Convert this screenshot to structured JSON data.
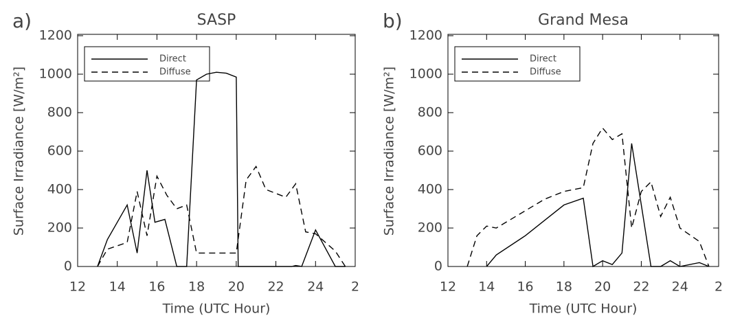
{
  "chart_data": [
    {
      "type": "line",
      "panel": "a)",
      "title": "SASP",
      "xlabel": "Time (UTC Hour)",
      "ylabel": "Surface Irradiance [W/m²]",
      "xlim": [
        12,
        26
      ],
      "xticks": [
        12,
        14,
        16,
        18,
        20,
        22,
        24,
        {
          "value": 26,
          "label": "2"
        }
      ],
      "ylim": [
        0,
        1200
      ],
      "yticks": [
        0,
        200,
        400,
        600,
        800,
        1000,
        1200
      ],
      "legend": "upper left",
      "series": [
        {
          "name": "Direct",
          "color": "#000000",
          "dash": false,
          "x": [
            13.0,
            13.5,
            14.5,
            15.0,
            15.5,
            15.9,
            16.4,
            17.0,
            17.5,
            18.0,
            18.5,
            19.0,
            19.5,
            20.0,
            20.1,
            22.8,
            23.0,
            23.3,
            24.0,
            25.0,
            25.5
          ],
          "values": [
            0,
            140,
            320,
            70,
            500,
            230,
            245,
            0,
            0,
            970,
            1000,
            1010,
            1005,
            985,
            0,
            0,
            5,
            0,
            190,
            0,
            0
          ]
        },
        {
          "name": "Diffuse",
          "color": "#000000",
          "dash": true,
          "x": [
            13.0,
            13.5,
            14.5,
            15.0,
            15.5,
            16.0,
            16.5,
            17.0,
            17.5,
            18.0,
            20.0,
            20.5,
            21.0,
            21.5,
            22.5,
            23.0,
            23.5,
            24.0,
            25.0,
            25.5
          ],
          "values": [
            0,
            90,
            125,
            390,
            160,
            470,
            370,
            300,
            320,
            70,
            70,
            450,
            520,
            400,
            360,
            430,
            180,
            170,
            80,
            0
          ]
        }
      ]
    },
    {
      "type": "line",
      "panel": "b)",
      "title": "Grand Mesa",
      "xlabel": "Time (UTC Hour)",
      "ylabel": "Surface Irradiance [W/m²]",
      "xlim": [
        12,
        26
      ],
      "xticks": [
        12,
        14,
        16,
        18,
        20,
        22,
        24,
        {
          "value": 26,
          "label": "2"
        }
      ],
      "ylim": [
        0,
        1200
      ],
      "yticks": [
        0,
        200,
        400,
        600,
        800,
        1000,
        1200
      ],
      "legend": "upper left",
      "series": [
        {
          "name": "Direct",
          "color": "#000000",
          "dash": false,
          "x": [
            14.0,
            14.5,
            16.0,
            17.0,
            18.0,
            19.0,
            19.5,
            20.0,
            20.5,
            21.0,
            21.5,
            22.5,
            23.0,
            23.5,
            24.0,
            25.0,
            25.5
          ],
          "values": [
            0,
            60,
            160,
            240,
            320,
            355,
            0,
            30,
            10,
            70,
            640,
            0,
            0,
            30,
            0,
            20,
            0
          ]
        },
        {
          "name": "Diffuse",
          "color": "#000000",
          "dash": true,
          "x": [
            13.0,
            13.5,
            14.0,
            14.5,
            16.0,
            17.0,
            18.0,
            19.0,
            19.5,
            20.0,
            20.5,
            21.0,
            21.5,
            22.0,
            22.5,
            23.0,
            23.5,
            24.0,
            25.0,
            25.5
          ],
          "values": [
            0,
            160,
            210,
            200,
            290,
            350,
            390,
            410,
            640,
            720,
            660,
            690,
            200,
            390,
            440,
            260,
            360,
            200,
            130,
            0
          ]
        }
      ]
    }
  ]
}
